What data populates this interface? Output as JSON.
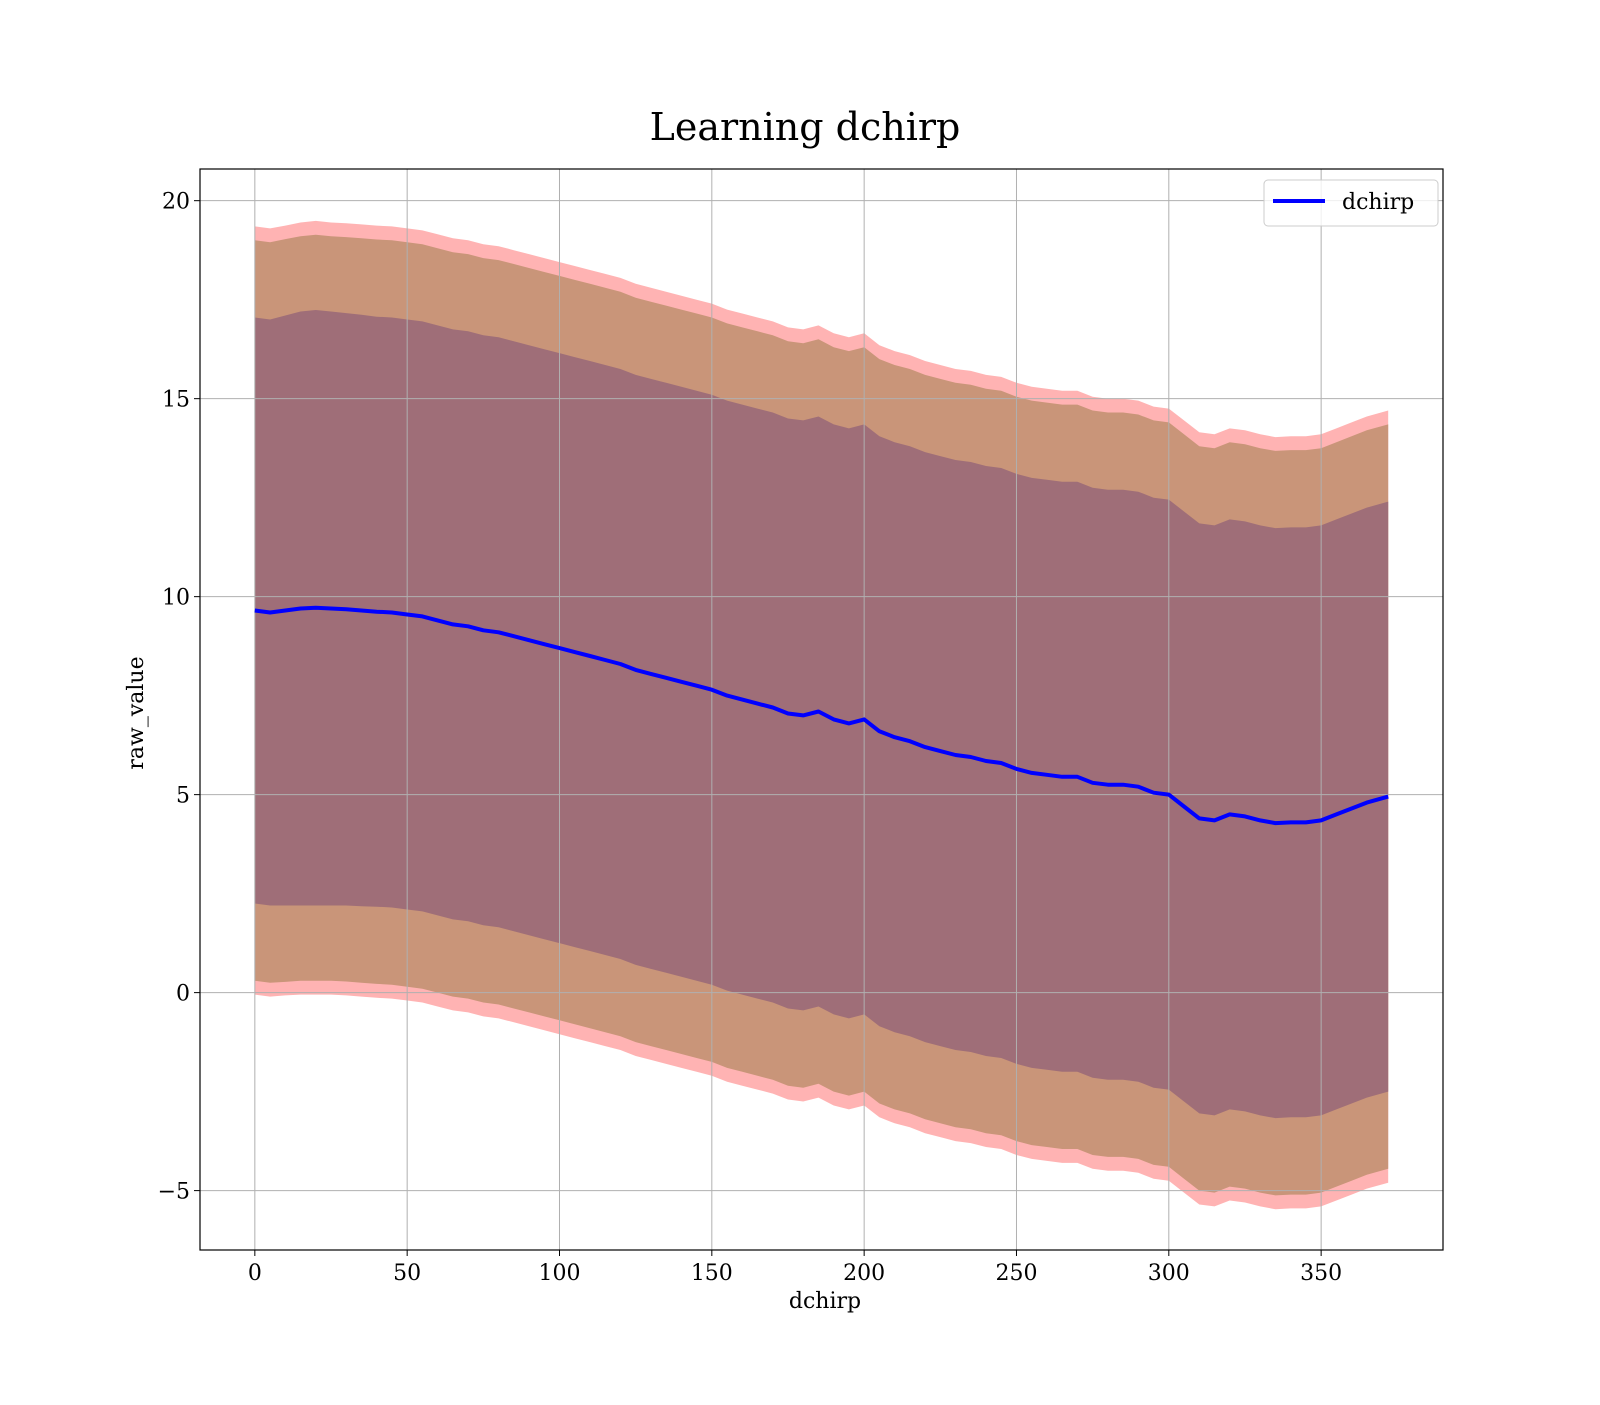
{
  "chart_data": {
    "type": "area",
    "title": "Learning dchirp",
    "xlabel": "dchirp",
    "ylabel": "raw_value",
    "xlim": [
      -18,
      390
    ],
    "ylim": [
      -6.5,
      20.8
    ],
    "xticks": [
      0,
      50,
      100,
      150,
      200,
      250,
      300,
      350
    ],
    "xtick_labels": [
      "0",
      "50",
      "100",
      "150",
      "200",
      "250",
      "300",
      "350"
    ],
    "yticks": [
      -5,
      0,
      5,
      10,
      15,
      20
    ],
    "ytick_labels": [
      "−5",
      "0",
      "5",
      "10",
      "15",
      "20"
    ],
    "grid": true,
    "legend": {
      "position": "top-right",
      "entries": [
        "dchirp"
      ]
    },
    "colors": {
      "line": "#0000ff",
      "outer_band": "#ff9999",
      "middle_band": "#c99579",
      "inner_band": "#9f6e78",
      "grid": "#b0b0b0"
    },
    "series": [
      {
        "name": "dchirp",
        "x": [
          0,
          5,
          10,
          15,
          20,
          25,
          30,
          35,
          40,
          45,
          50,
          55,
          60,
          65,
          70,
          75,
          80,
          85,
          90,
          95,
          100,
          105,
          110,
          115,
          120,
          125,
          130,
          135,
          140,
          145,
          150,
          155,
          160,
          165,
          170,
          175,
          180,
          185,
          190,
          195,
          200,
          205,
          210,
          215,
          220,
          225,
          230,
          235,
          240,
          245,
          250,
          255,
          260,
          265,
          270,
          275,
          280,
          285,
          290,
          295,
          300,
          305,
          310,
          315,
          320,
          325,
          330,
          335,
          340,
          345,
          350,
          355,
          360,
          365,
          372
        ],
        "mean": [
          9.65,
          9.6,
          9.65,
          9.7,
          9.72,
          9.7,
          9.68,
          9.65,
          9.62,
          9.6,
          9.55,
          9.5,
          9.4,
          9.3,
          9.25,
          9.15,
          9.1,
          9.0,
          8.9,
          8.8,
          8.7,
          8.6,
          8.5,
          8.4,
          8.3,
          8.15,
          8.05,
          7.95,
          7.85,
          7.75,
          7.65,
          7.5,
          7.4,
          7.3,
          7.2,
          7.05,
          7.0,
          7.1,
          6.9,
          6.8,
          6.9,
          6.6,
          6.45,
          6.35,
          6.2,
          6.1,
          6.0,
          5.95,
          5.85,
          5.8,
          5.65,
          5.55,
          5.5,
          5.45,
          5.45,
          5.3,
          5.25,
          5.25,
          5.2,
          5.05,
          5.0,
          4.7,
          4.4,
          4.35,
          4.5,
          4.45,
          4.35,
          4.28,
          4.3,
          4.3,
          4.35,
          4.5,
          4.65,
          4.8,
          4.95
        ],
        "band_inner": [
          7.4,
          7.4,
          7.45,
          7.5,
          7.52,
          7.5,
          7.48,
          7.47,
          7.45,
          7.45,
          7.45,
          7.45,
          7.45,
          7.45,
          7.45,
          7.45,
          7.45,
          7.45,
          7.45,
          7.45,
          7.45,
          7.45,
          7.45,
          7.45,
          7.45,
          7.45,
          7.45,
          7.45,
          7.45,
          7.45,
          7.45,
          7.45,
          7.45,
          7.45,
          7.45,
          7.45,
          7.45,
          7.45,
          7.45,
          7.45,
          7.45,
          7.45,
          7.45,
          7.45,
          7.45,
          7.45,
          7.45,
          7.45,
          7.45,
          7.45,
          7.45,
          7.45,
          7.45,
          7.45,
          7.45,
          7.45,
          7.45,
          7.45,
          7.45,
          7.45,
          7.45,
          7.45,
          7.45,
          7.45,
          7.45,
          7.45,
          7.45,
          7.45,
          7.45,
          7.45,
          7.45,
          7.45,
          7.45,
          7.45,
          7.45
        ],
        "band_middle": [
          9.35,
          9.35,
          9.38,
          9.4,
          9.42,
          9.4,
          9.4,
          9.4,
          9.4,
          9.4,
          9.4,
          9.4,
          9.4,
          9.4,
          9.4,
          9.4,
          9.4,
          9.4,
          9.4,
          9.4,
          9.4,
          9.4,
          9.4,
          9.4,
          9.4,
          9.4,
          9.4,
          9.4,
          9.4,
          9.4,
          9.4,
          9.4,
          9.4,
          9.4,
          9.4,
          9.4,
          9.4,
          9.4,
          9.4,
          9.4,
          9.4,
          9.4,
          9.4,
          9.4,
          9.4,
          9.4,
          9.4,
          9.4,
          9.4,
          9.4,
          9.4,
          9.4,
          9.4,
          9.4,
          9.4,
          9.4,
          9.4,
          9.4,
          9.4,
          9.4,
          9.4,
          9.4,
          9.4,
          9.4,
          9.4,
          9.4,
          9.4,
          9.4,
          9.4,
          9.4,
          9.4,
          9.4,
          9.4,
          9.4,
          9.4
        ],
        "band_outer": [
          9.7,
          9.7,
          9.72,
          9.75,
          9.77,
          9.75,
          9.75,
          9.75,
          9.75,
          9.75,
          9.75,
          9.75,
          9.75,
          9.75,
          9.75,
          9.75,
          9.75,
          9.75,
          9.75,
          9.75,
          9.75,
          9.75,
          9.75,
          9.75,
          9.75,
          9.75,
          9.75,
          9.75,
          9.75,
          9.75,
          9.75,
          9.75,
          9.75,
          9.75,
          9.75,
          9.75,
          9.75,
          9.75,
          9.75,
          9.75,
          9.75,
          9.75,
          9.75,
          9.75,
          9.75,
          9.75,
          9.75,
          9.75,
          9.75,
          9.75,
          9.75,
          9.75,
          9.75,
          9.75,
          9.75,
          9.75,
          9.75,
          9.75,
          9.75,
          9.75,
          9.75,
          9.75,
          9.75,
          9.75,
          9.75,
          9.75,
          9.75,
          9.75,
          9.75,
          9.75,
          9.75,
          9.75,
          9.75,
          9.75,
          9.75
        ]
      }
    ]
  }
}
